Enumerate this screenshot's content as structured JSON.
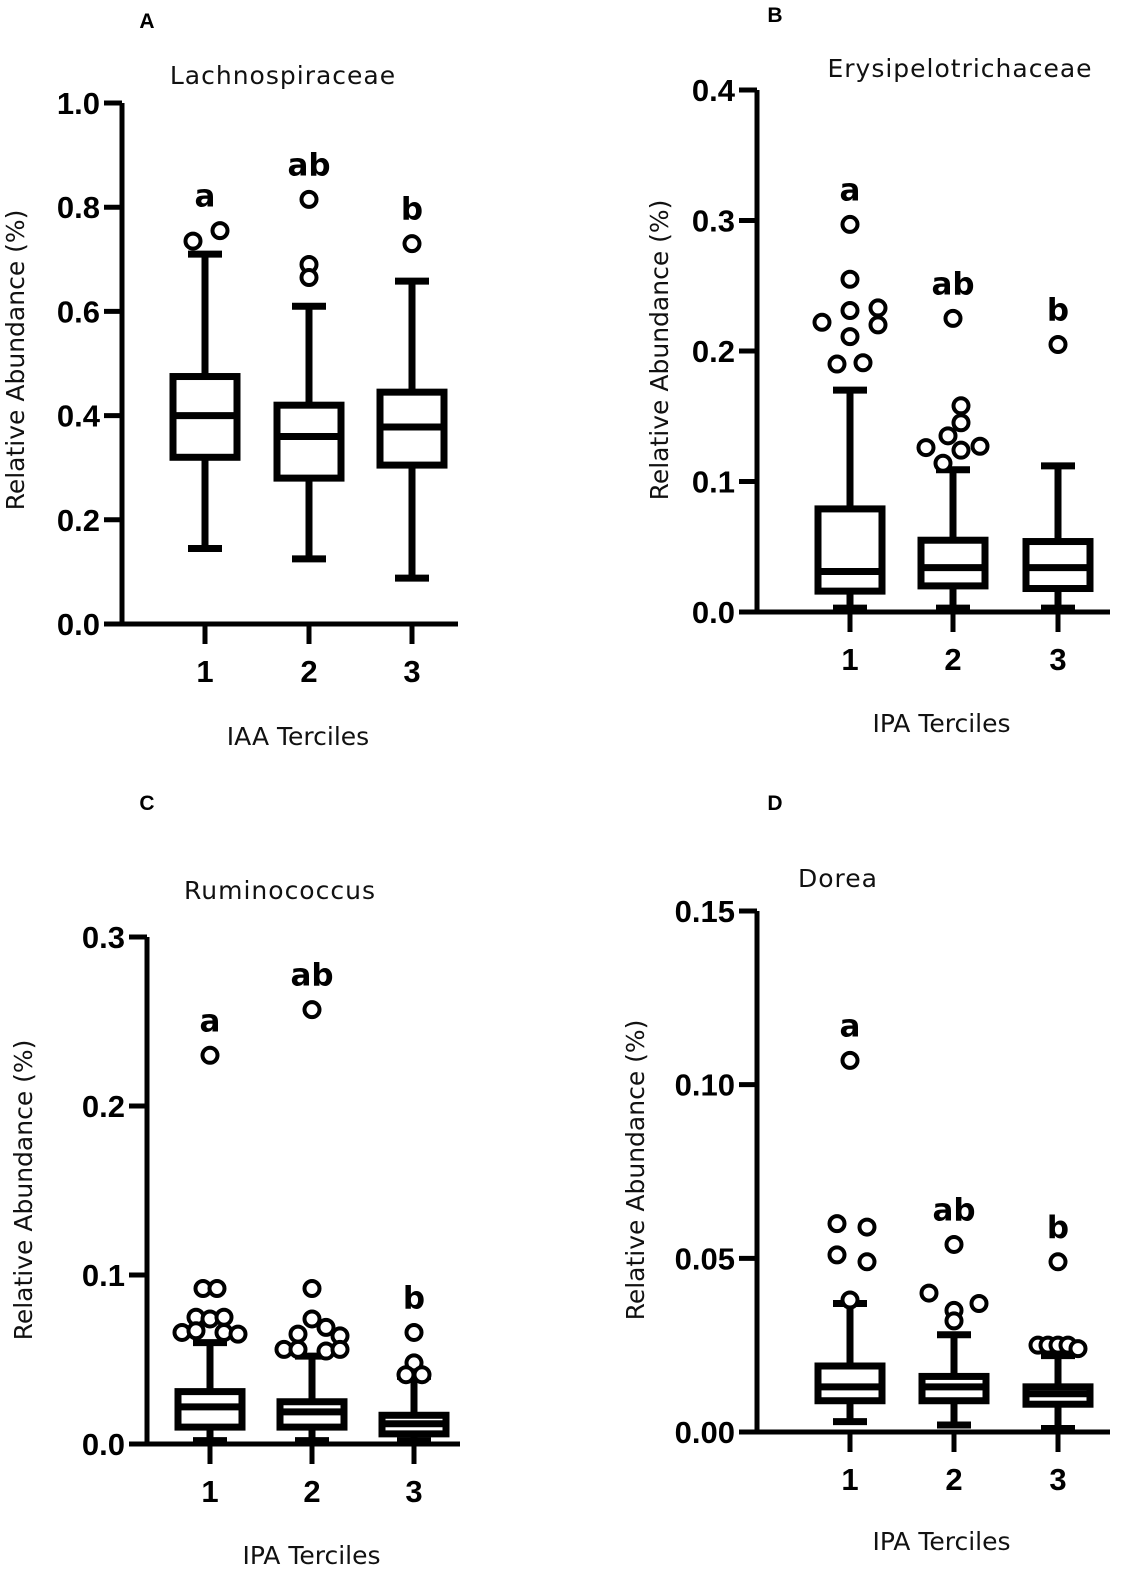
{
  "chart_data": [
    {
      "type": "box",
      "panel_label": "A",
      "title": "Lachnospiraceae",
      "xlabel": "IAA Terciles",
      "ylabel": "Relative Abundance (%)",
      "ylim": [
        0,
        1.0
      ],
      "yticks": [
        0.0,
        0.2,
        0.4,
        0.6,
        0.8,
        1.0
      ],
      "ytick_labels": [
        "0.0",
        "0.2",
        "0.4",
        "0.6",
        "0.8",
        "1.0"
      ],
      "categories": [
        "1",
        "2",
        "3"
      ],
      "boxes": [
        {
          "min": 0.145,
          "q1": 0.32,
          "median": 0.4,
          "q3": 0.475,
          "max": 0.71,
          "outliers": [
            0.735,
            0.755
          ],
          "letter": "a"
        },
        {
          "min": 0.125,
          "q1": 0.28,
          "median": 0.36,
          "q3": 0.42,
          "max": 0.61,
          "outliers": [
            0.815,
            0.69,
            0.665
          ],
          "letter": "ab"
        },
        {
          "min": 0.088,
          "q1": 0.305,
          "median": 0.378,
          "q3": 0.445,
          "max": 0.658,
          "outliers": [
            0.73
          ],
          "letter": "b"
        }
      ]
    },
    {
      "type": "box",
      "panel_label": "B",
      "title": "Erysipelotrichaceae",
      "xlabel": "IPA Terciles",
      "ylabel": "Relative Abundance (%)",
      "ylim": [
        0,
        0.4
      ],
      "yticks": [
        0.0,
        0.1,
        0.2,
        0.3,
        0.4
      ],
      "ytick_labels": [
        "0.0",
        "0.1",
        "0.2",
        "0.3",
        "0.4"
      ],
      "categories": [
        "1",
        "2",
        "3"
      ],
      "boxes": [
        {
          "min": 0.003,
          "q1": 0.016,
          "median": 0.031,
          "q3": 0.079,
          "max": 0.17,
          "outliers": [
            0.297,
            0.255,
            0.222,
            0.231,
            0.233,
            0.22,
            0.211,
            0.19,
            0.191
          ],
          "letter": "a"
        },
        {
          "min": 0.003,
          "q1": 0.02,
          "median": 0.034,
          "q3": 0.055,
          "max": 0.109,
          "outliers": [
            0.225,
            0.158,
            0.145,
            0.135,
            0.126,
            0.127,
            0.124,
            0.114
          ],
          "letter": "ab"
        },
        {
          "min": 0.003,
          "q1": 0.018,
          "median": 0.034,
          "q3": 0.054,
          "max": 0.112,
          "outliers": [
            0.205
          ],
          "letter": "b"
        }
      ]
    },
    {
      "type": "box",
      "panel_label": "C",
      "title": "Ruminococcus",
      "xlabel": "IPA Terciles",
      "ylabel": "Relative Abundance (%)",
      "ylim": [
        0,
        0.3
      ],
      "yticks": [
        0.0,
        0.1,
        0.2,
        0.3
      ],
      "ytick_labels": [
        "0.0",
        "0.1",
        "0.2",
        "0.3"
      ],
      "categories": [
        "1",
        "2",
        "3"
      ],
      "boxes": [
        {
          "min": 0.002,
          "q1": 0.01,
          "median": 0.022,
          "q3": 0.031,
          "max": 0.06,
          "outliers": [
            0.23,
            0.092,
            0.092,
            0.075,
            0.074,
            0.075,
            0.066,
            0.067,
            0.066,
            0.065
          ],
          "letter": "a"
        },
        {
          "min": 0.002,
          "q1": 0.01,
          "median": 0.019,
          "q3": 0.025,
          "max": 0.052,
          "outliers": [
            0.257,
            0.092,
            0.074,
            0.069,
            0.065,
            0.064,
            0.056,
            0.056,
            0.055,
            0.056
          ],
          "letter": "ab"
        },
        {
          "min": 0.002,
          "q1": 0.006,
          "median": 0.012,
          "q3": 0.017,
          "max": 0.04,
          "outliers": [
            0.066,
            0.048,
            0.041,
            0.041
          ],
          "letter": "b"
        }
      ]
    },
    {
      "type": "box",
      "panel_label": "D",
      "title": "Dorea",
      "xlabel": "IPA Terciles",
      "ylabel": "Relative Abundance (%)",
      "ylim": [
        0,
        0.15
      ],
      "yticks": [
        0.0,
        0.05,
        0.1,
        0.15
      ],
      "ytick_labels": [
        "0.00",
        "0.05",
        "0.10",
        "0.15"
      ],
      "categories": [
        "1",
        "2",
        "3"
      ],
      "boxes": [
        {
          "min": 0.003,
          "q1": 0.009,
          "median": 0.013,
          "q3": 0.019,
          "max": 0.037,
          "outliers": [
            0.107,
            0.06,
            0.059,
            0.051,
            0.049,
            0.038
          ],
          "letter": "a"
        },
        {
          "min": 0.002,
          "q1": 0.009,
          "median": 0.013,
          "q3": 0.016,
          "max": 0.028,
          "outliers": [
            0.054,
            0.04,
            0.037,
            0.035,
            0.032
          ],
          "letter": "ab"
        },
        {
          "min": 0.001,
          "q1": 0.008,
          "median": 0.011,
          "q3": 0.013,
          "max": 0.022,
          "outliers": [
            0.049,
            0.025,
            0.025,
            0.025,
            0.025,
            0.024
          ],
          "letter": "b"
        }
      ]
    }
  ]
}
